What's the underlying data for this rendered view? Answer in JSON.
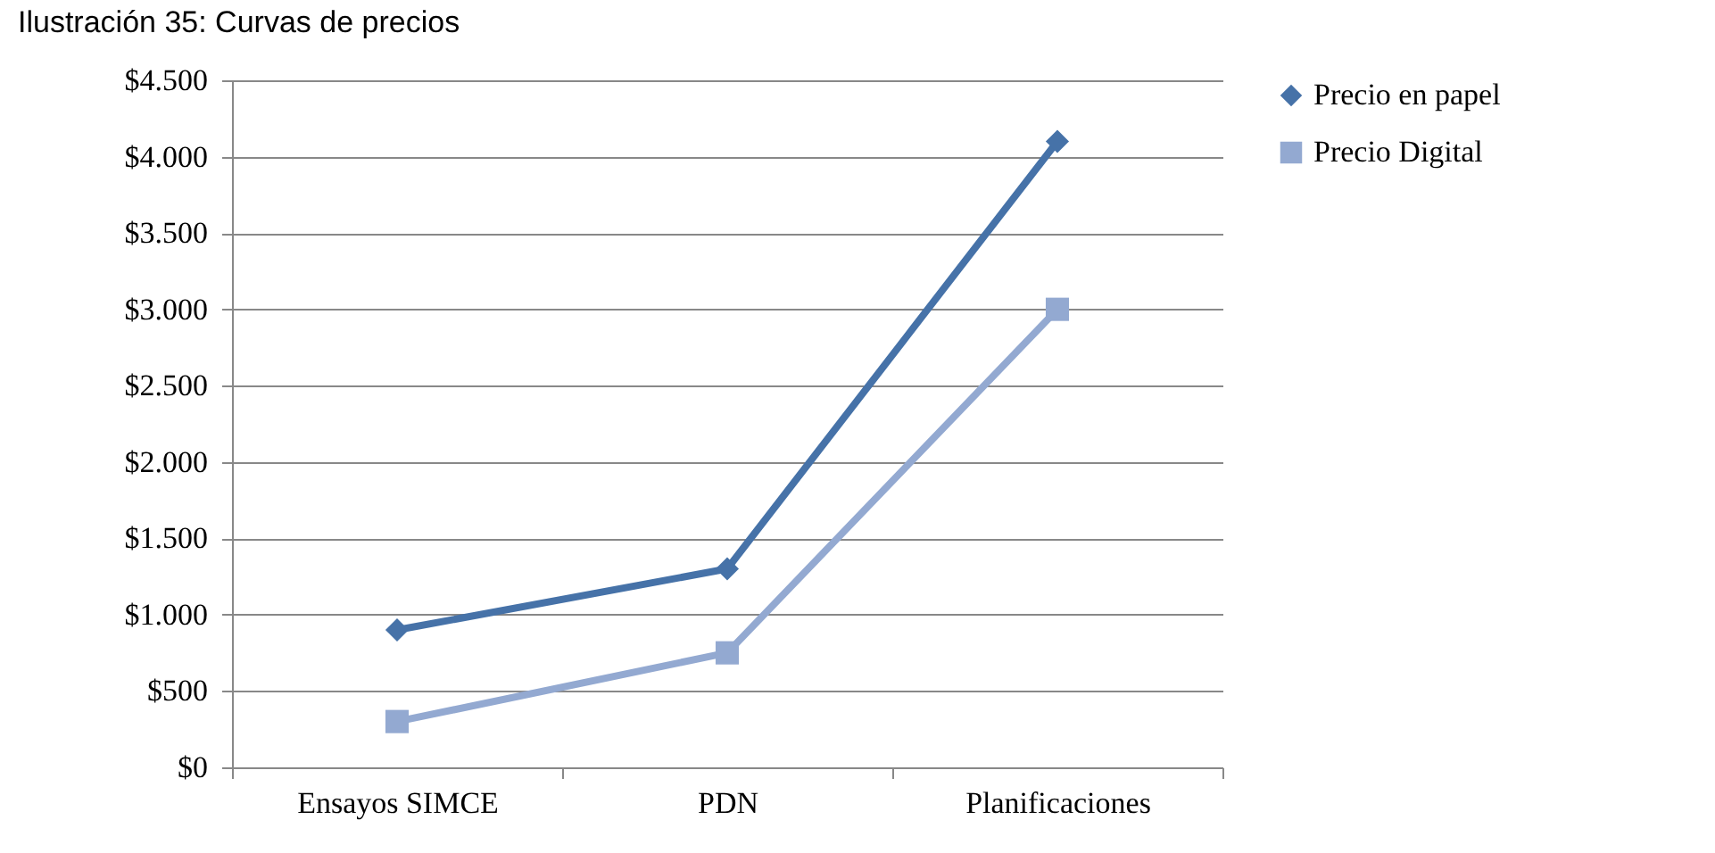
{
  "chart_data": {
    "type": "line",
    "title": "Ilustración 35: Curvas de precios",
    "categories": [
      "Ensayos SIMCE",
      "PDN",
      "Planificaciones"
    ],
    "series": [
      {
        "name": "Precio en papel",
        "color": "#4672a8",
        "marker": "diamond",
        "values": [
          900,
          1300,
          4100
        ]
      },
      {
        "name": "Precio Digital",
        "color": "#93a9d1",
        "marker": "square",
        "values": [
          300,
          750,
          3000
        ]
      }
    ],
    "ylim": [
      0,
      4500
    ],
    "yticks": [
      {
        "value": 0,
        "label": "$0"
      },
      {
        "value": 500,
        "label": "$500"
      },
      {
        "value": 1000,
        "label": "$1.000"
      },
      {
        "value": 1500,
        "label": "$1.500"
      },
      {
        "value": 2000,
        "label": "$2.000"
      },
      {
        "value": 2500,
        "label": "$2.500"
      },
      {
        "value": 3000,
        "label": "$3.000"
      },
      {
        "value": 3500,
        "label": "$3.500"
      },
      {
        "value": 4000,
        "label": "$4.000"
      },
      {
        "value": 4500,
        "label": "$4.500"
      }
    ],
    "grid": "y",
    "legend": "right",
    "line_style": "solid"
  }
}
